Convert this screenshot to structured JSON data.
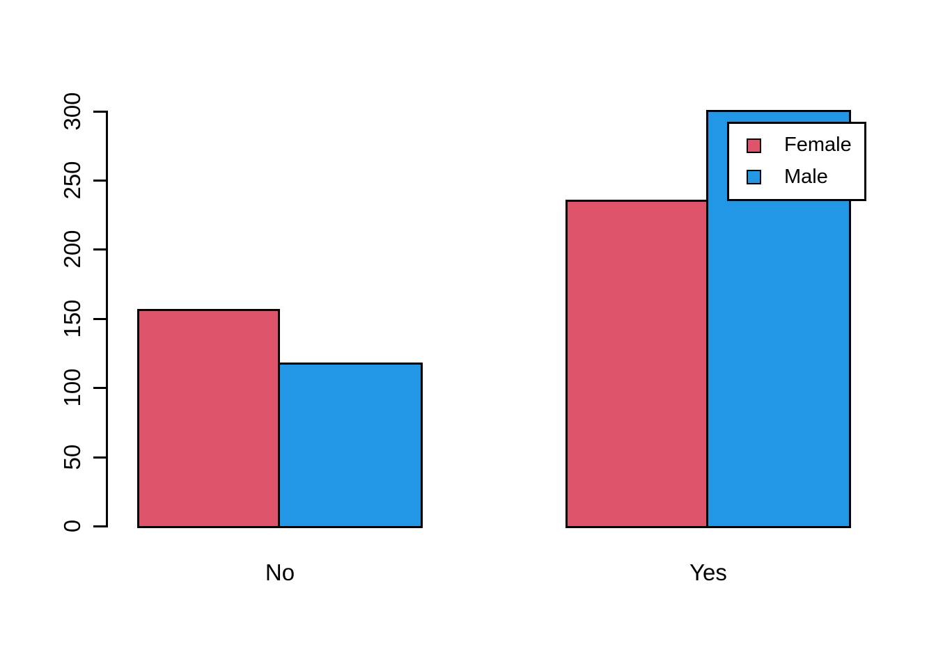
{
  "chart_data": {
    "type": "bar",
    "grouped_beside": true,
    "title": "",
    "xlabel": "",
    "ylabel": "",
    "categories": [
      "No",
      "Yes"
    ],
    "series": [
      {
        "name": "Female",
        "color": "#DF536B",
        "values": [
          157,
          236
        ]
      },
      {
        "name": "Male",
        "color": "#2297E6",
        "values": [
          118,
          301
        ]
      }
    ],
    "ylim": [
      0,
      300
    ],
    "yticks": [
      0,
      50,
      100,
      150,
      200,
      250,
      300
    ],
    "grid": false,
    "legend": {
      "position": "topright",
      "labels": [
        "Female",
        "Male"
      ]
    },
    "colors": {
      "bar_border": "#000000",
      "axis": "#000000",
      "text": "#000000",
      "background": "#FFFFFF"
    }
  }
}
